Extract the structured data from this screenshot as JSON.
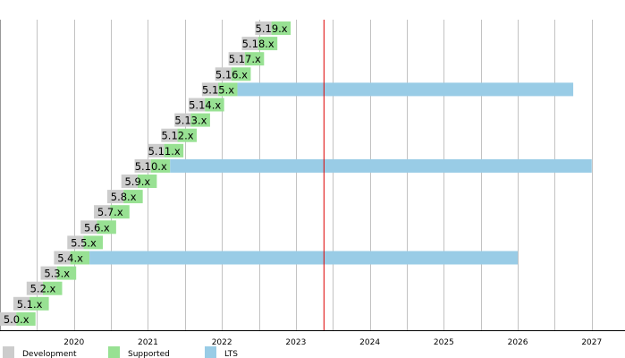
{
  "chart_data": {
    "type": "bar",
    "orientation": "horizontal-timeline",
    "title": "",
    "xlabel": "",
    "ylabel": "",
    "x_range": [
      2019.0,
      2027.45
    ],
    "x_ticks": [
      "2020",
      "2021",
      "2022",
      "2023",
      "2024",
      "2025",
      "2026",
      "2027"
    ],
    "x_tick_values": [
      2020,
      2021,
      2022,
      2023,
      2024,
      2025,
      2026,
      2027
    ],
    "grid": true,
    "today_marker": 2023.38,
    "colors": {
      "development": "#cccccc",
      "supported": "#98e193",
      "lts": "#99cce6",
      "today": "#dd0000",
      "grid": "#999999"
    },
    "legend_placement": "bottom-left",
    "legend": [
      {
        "key": "development",
        "label": "Development"
      },
      {
        "key": "supported",
        "label": "Supported"
      },
      {
        "key": "lts",
        "label": "LTS"
      }
    ],
    "releases": [
      {
        "label": "5.0.x",
        "dev_start": 2019.0,
        "release": 2019.22,
        "end": 2019.48
      },
      {
        "label": "5.1.x",
        "dev_start": 2019.18,
        "release": 2019.4,
        "end": 2019.66
      },
      {
        "label": "5.2.x",
        "dev_start": 2019.36,
        "release": 2019.58,
        "end": 2019.84
      },
      {
        "label": "5.3.x",
        "dev_start": 2019.55,
        "release": 2019.77,
        "end": 2020.03
      },
      {
        "label": "5.4.x",
        "dev_start": 2019.73,
        "release": 2019.95,
        "end": 2020.21,
        "lts_end": 2026.0
      },
      {
        "label": "5.5.x",
        "dev_start": 2019.91,
        "release": 2020.13,
        "end": 2020.39
      },
      {
        "label": "5.6.x",
        "dev_start": 2020.09,
        "release": 2020.31,
        "end": 2020.57
      },
      {
        "label": "5.7.x",
        "dev_start": 2020.27,
        "release": 2020.49,
        "end": 2020.75
      },
      {
        "label": "5.8.x",
        "dev_start": 2020.45,
        "release": 2020.67,
        "end": 2020.93
      },
      {
        "label": "5.9.x",
        "dev_start": 2020.64,
        "release": 2020.86,
        "end": 2021.12
      },
      {
        "label": "5.10.x",
        "dev_start": 2020.82,
        "release": 2021.04,
        "end": 2021.3,
        "lts_end": 2027.0
      },
      {
        "label": "5.11.x",
        "dev_start": 2021.0,
        "release": 2021.22,
        "end": 2021.48
      },
      {
        "label": "5.12.x",
        "dev_start": 2021.18,
        "release": 2021.4,
        "end": 2021.66
      },
      {
        "label": "5.13.x",
        "dev_start": 2021.36,
        "release": 2021.58,
        "end": 2021.84
      },
      {
        "label": "5.14.x",
        "dev_start": 2021.55,
        "release": 2021.77,
        "end": 2022.03
      },
      {
        "label": "5.15.x",
        "dev_start": 2021.73,
        "release": 2021.95,
        "end": 2022.21,
        "lts_end": 2026.75
      },
      {
        "label": "5.16.x",
        "dev_start": 2021.91,
        "release": 2022.13,
        "end": 2022.39
      },
      {
        "label": "5.17.x",
        "dev_start": 2022.09,
        "release": 2022.31,
        "end": 2022.57
      },
      {
        "label": "5.18.x",
        "dev_start": 2022.27,
        "release": 2022.49,
        "end": 2022.75
      },
      {
        "label": "5.19.x",
        "dev_start": 2022.45,
        "release": 2022.67,
        "end": 2022.93
      }
    ]
  }
}
